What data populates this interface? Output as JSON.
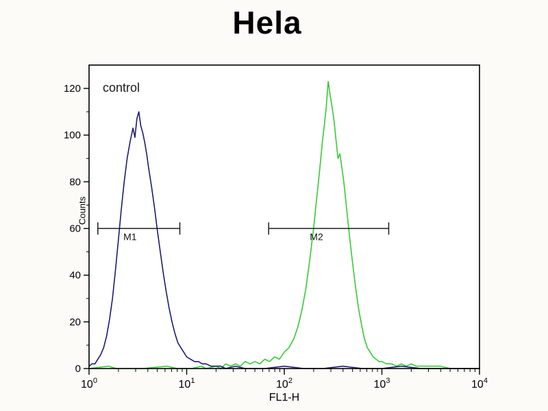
{
  "title": "Hela",
  "colors": {
    "control_series": "#1b1b70",
    "green_series": "#33cc33",
    "axis": "#000000",
    "marker": "#1a1a1a",
    "background": "#fcfbf7"
  },
  "chart_data": {
    "type": "line",
    "subtype": "flow-cytometry-histogram",
    "title": "Hela",
    "xlabel": "FL1-H",
    "ylabel": "Counts",
    "x_scale": "log10",
    "xlim_log": [
      0,
      4
    ],
    "ylim": [
      0,
      130
    ],
    "x_tick_exponents": [
      0,
      1,
      2,
      3,
      4
    ],
    "x_tick_base": "10",
    "y_ticks": [
      0,
      20,
      40,
      60,
      80,
      100,
      120
    ],
    "grid": false,
    "legend": "none",
    "annotations": {
      "control_label": "control"
    },
    "markers": [
      {
        "label": "M1",
        "y": 60,
        "x1_log": 0.09,
        "x2_log": 0.93,
        "label_log": 0.42
      },
      {
        "label": "M2",
        "y": 60,
        "x1_log": 1.84,
        "x2_log": 3.07,
        "label_log": 2.33
      }
    ],
    "series": [
      {
        "name": "green_peak",
        "color": "#33cc33",
        "points_log": [
          [
            0.0,
            0
          ],
          [
            0.2,
            1
          ],
          [
            0.28,
            0
          ],
          [
            0.55,
            0
          ],
          [
            0.8,
            1
          ],
          [
            0.9,
            0
          ],
          [
            1.05,
            0
          ],
          [
            1.15,
            1
          ],
          [
            1.2,
            0
          ],
          [
            1.3,
            1
          ],
          [
            1.35,
            0
          ],
          [
            1.4,
            2
          ],
          [
            1.45,
            1
          ],
          [
            1.5,
            2
          ],
          [
            1.55,
            1
          ],
          [
            1.6,
            3
          ],
          [
            1.65,
            2
          ],
          [
            1.7,
            3
          ],
          [
            1.75,
            2
          ],
          [
            1.8,
            4
          ],
          [
            1.85,
            3
          ],
          [
            1.9,
            5
          ],
          [
            1.95,
            4
          ],
          [
            2.0,
            7
          ],
          [
            2.05,
            9
          ],
          [
            2.1,
            13
          ],
          [
            2.14,
            18
          ],
          [
            2.18,
            25
          ],
          [
            2.22,
            34
          ],
          [
            2.26,
            46
          ],
          [
            2.3,
            60
          ],
          [
            2.33,
            72
          ],
          [
            2.36,
            84
          ],
          [
            2.39,
            97
          ],
          [
            2.41,
            104
          ],
          [
            2.43,
            112
          ],
          [
            2.45,
            123
          ],
          [
            2.47,
            117
          ],
          [
            2.49,
            112
          ],
          [
            2.51,
            106
          ],
          [
            2.53,
            98
          ],
          [
            2.55,
            90
          ],
          [
            2.57,
            92
          ],
          [
            2.59,
            86
          ],
          [
            2.61,
            80
          ],
          [
            2.64,
            68
          ],
          [
            2.67,
            56
          ],
          [
            2.7,
            45
          ],
          [
            2.73,
            35
          ],
          [
            2.76,
            26
          ],
          [
            2.79,
            19
          ],
          [
            2.82,
            13
          ],
          [
            2.85,
            9
          ],
          [
            2.88,
            7
          ],
          [
            2.91,
            5
          ],
          [
            2.94,
            4
          ],
          [
            2.97,
            3
          ],
          [
            3.0,
            3
          ],
          [
            3.05,
            2
          ],
          [
            3.1,
            2
          ],
          [
            3.15,
            1
          ],
          [
            3.2,
            2
          ],
          [
            3.25,
            1
          ],
          [
            3.3,
            2
          ],
          [
            3.35,
            1
          ],
          [
            3.4,
            1
          ],
          [
            3.5,
            1
          ],
          [
            3.6,
            1
          ],
          [
            3.7,
            0
          ],
          [
            3.85,
            0
          ],
          [
            4.0,
            0
          ]
        ]
      },
      {
        "name": "control",
        "color": "#1b1b70",
        "points_log": [
          [
            0.0,
            1
          ],
          [
            0.03,
            2
          ],
          [
            0.06,
            2
          ],
          [
            0.09,
            4
          ],
          [
            0.12,
            6
          ],
          [
            0.15,
            9
          ],
          [
            0.18,
            14
          ],
          [
            0.21,
            21
          ],
          [
            0.24,
            30
          ],
          [
            0.27,
            42
          ],
          [
            0.3,
            55
          ],
          [
            0.33,
            68
          ],
          [
            0.36,
            80
          ],
          [
            0.39,
            90
          ],
          [
            0.42,
            97
          ],
          [
            0.45,
            103
          ],
          [
            0.47,
            99
          ],
          [
            0.49,
            107
          ],
          [
            0.51,
            110
          ],
          [
            0.53,
            104
          ],
          [
            0.55,
            101
          ],
          [
            0.57,
            97
          ],
          [
            0.59,
            92
          ],
          [
            0.61,
            86
          ],
          [
            0.64,
            78
          ],
          [
            0.67,
            69
          ],
          [
            0.7,
            59
          ],
          [
            0.73,
            50
          ],
          [
            0.76,
            41
          ],
          [
            0.79,
            33
          ],
          [
            0.82,
            26
          ],
          [
            0.85,
            20
          ],
          [
            0.88,
            15
          ],
          [
            0.91,
            11
          ],
          [
            0.94,
            9
          ],
          [
            0.97,
            7
          ],
          [
            1.0,
            5
          ],
          [
            1.04,
            4
          ],
          [
            1.08,
            3
          ],
          [
            1.12,
            3
          ],
          [
            1.16,
            2
          ],
          [
            1.2,
            2
          ],
          [
            1.25,
            1
          ],
          [
            1.3,
            1
          ],
          [
            1.35,
            1
          ],
          [
            1.4,
            0
          ],
          [
            1.5,
            1
          ],
          [
            1.6,
            0
          ],
          [
            1.8,
            0
          ],
          [
            2.0,
            1
          ],
          [
            2.2,
            0
          ],
          [
            2.4,
            0
          ],
          [
            2.6,
            1
          ],
          [
            2.8,
            0
          ],
          [
            3.0,
            0
          ],
          [
            3.2,
            1
          ],
          [
            3.4,
            0
          ],
          [
            3.6,
            0
          ],
          [
            3.8,
            0
          ],
          [
            4.0,
            0
          ]
        ]
      }
    ]
  }
}
